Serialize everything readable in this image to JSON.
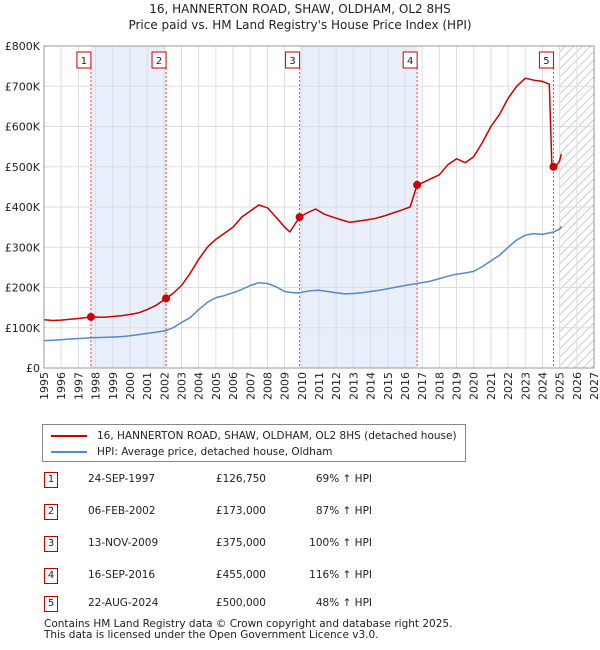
{
  "title_line1": "16, HANNERTON ROAD, SHAW, OLDHAM, OL2 8HS",
  "title_line2": "Price paid vs. HM Land Registry's House Price Index (HPI)",
  "chart_data": {
    "type": "line",
    "x_range": [
      1995,
      2027
    ],
    "y_range": [
      0,
      800000
    ],
    "y_ticks": [
      {
        "value": 0,
        "label": "£0"
      },
      {
        "value": 100000,
        "label": "£100K"
      },
      {
        "value": 200000,
        "label": "£200K"
      },
      {
        "value": 300000,
        "label": "£300K"
      },
      {
        "value": 400000,
        "label": "£400K"
      },
      {
        "value": 500000,
        "label": "£500K"
      },
      {
        "value": 600000,
        "label": "£600K"
      },
      {
        "value": 700000,
        "label": "£700K"
      },
      {
        "value": 800000,
        "label": "£800K"
      }
    ],
    "x_ticks": [
      "1995",
      "1996",
      "1997",
      "1998",
      "1999",
      "2000",
      "2001",
      "2002",
      "2003",
      "2004",
      "2005",
      "2006",
      "2007",
      "2008",
      "2009",
      "2010",
      "2011",
      "2012",
      "2013",
      "2014",
      "2015",
      "2016",
      "2017",
      "2018",
      "2019",
      "2020",
      "2021",
      "2022",
      "2023",
      "2024",
      "2025",
      "2026",
      "2027"
    ],
    "grid": true,
    "shaded_ranges": [
      [
        1997.73,
        2002.1
      ],
      [
        2009.87,
        2016.71
      ]
    ],
    "future_hatch_from": 2025.0,
    "series": [
      {
        "name": "16, HANNERTON ROAD, SHAW, OLDHAM, OL2 8HS (detached house)",
        "color": "#cc0000",
        "points": [
          [
            1995.0,
            120000
          ],
          [
            1995.5,
            118000
          ],
          [
            1996.0,
            119000
          ],
          [
            1996.5,
            121000
          ],
          [
            1997.0,
            123000
          ],
          [
            1997.73,
            126750
          ],
          [
            1998.5,
            126000
          ],
          [
            1999.0,
            128000
          ],
          [
            1999.5,
            130000
          ],
          [
            2000.0,
            133000
          ],
          [
            2000.5,
            137000
          ],
          [
            2001.0,
            145000
          ],
          [
            2001.5,
            155000
          ],
          [
            2002.1,
            173000
          ],
          [
            2002.5,
            185000
          ],
          [
            2003.0,
            205000
          ],
          [
            2003.5,
            235000
          ],
          [
            2004.0,
            270000
          ],
          [
            2004.5,
            300000
          ],
          [
            2005.0,
            320000
          ],
          [
            2005.5,
            335000
          ],
          [
            2006.0,
            350000
          ],
          [
            2006.5,
            375000
          ],
          [
            2007.0,
            390000
          ],
          [
            2007.5,
            405000
          ],
          [
            2008.0,
            398000
          ],
          [
            2008.5,
            375000
          ],
          [
            2009.0,
            350000
          ],
          [
            2009.3,
            338000
          ],
          [
            2009.87,
            375000
          ],
          [
            2010.3,
            385000
          ],
          [
            2010.8,
            395000
          ],
          [
            2011.3,
            382000
          ],
          [
            2011.8,
            375000
          ],
          [
            2012.3,
            368000
          ],
          [
            2012.8,
            362000
          ],
          [
            2013.3,
            365000
          ],
          [
            2013.8,
            368000
          ],
          [
            2014.3,
            372000
          ],
          [
            2014.8,
            378000
          ],
          [
            2015.3,
            385000
          ],
          [
            2015.8,
            392000
          ],
          [
            2016.3,
            400000
          ],
          [
            2016.71,
            455000
          ],
          [
            2017.0,
            460000
          ],
          [
            2017.5,
            470000
          ],
          [
            2018.0,
            480000
          ],
          [
            2018.5,
            505000
          ],
          [
            2019.0,
            520000
          ],
          [
            2019.5,
            510000
          ],
          [
            2020.0,
            525000
          ],
          [
            2020.5,
            560000
          ],
          [
            2021.0,
            600000
          ],
          [
            2021.5,
            630000
          ],
          [
            2022.0,
            670000
          ],
          [
            2022.5,
            700000
          ],
          [
            2023.0,
            720000
          ],
          [
            2023.5,
            715000
          ],
          [
            2024.0,
            712000
          ],
          [
            2024.4,
            705000
          ],
          [
            2024.55,
            500000
          ],
          [
            2024.75,
            498000
          ],
          [
            2025.0,
            515000
          ],
          [
            2025.1,
            532000
          ]
        ]
      },
      {
        "name": "HPI: Average price, detached house, Oldham",
        "color": "#5588cc",
        "points": [
          [
            1995.0,
            68000
          ],
          [
            1995.5,
            69000
          ],
          [
            1996.0,
            70000
          ],
          [
            1996.5,
            72000
          ],
          [
            1997.0,
            73000
          ],
          [
            1997.73,
            75000
          ],
          [
            1998.5,
            76000
          ],
          [
            1999.0,
            77000
          ],
          [
            1999.5,
            78000
          ],
          [
            2000.0,
            80000
          ],
          [
            2000.5,
            83000
          ],
          [
            2001.0,
            86000
          ],
          [
            2001.5,
            89000
          ],
          [
            2002.1,
            93000
          ],
          [
            2002.5,
            100000
          ],
          [
            2003.0,
            113000
          ],
          [
            2003.5,
            125000
          ],
          [
            2004.0,
            145000
          ],
          [
            2004.5,
            163000
          ],
          [
            2005.0,
            175000
          ],
          [
            2005.5,
            180000
          ],
          [
            2006.0,
            187000
          ],
          [
            2006.5,
            195000
          ],
          [
            2007.0,
            205000
          ],
          [
            2007.5,
            212000
          ],
          [
            2008.0,
            210000
          ],
          [
            2008.5,
            202000
          ],
          [
            2009.0,
            190000
          ],
          [
            2009.5,
            187000
          ],
          [
            2009.87,
            187000
          ],
          [
            2010.5,
            192000
          ],
          [
            2011.0,
            193000
          ],
          [
            2011.5,
            190000
          ],
          [
            2012.0,
            187000
          ],
          [
            2012.5,
            184000
          ],
          [
            2013.0,
            185000
          ],
          [
            2013.5,
            187000
          ],
          [
            2014.0,
            190000
          ],
          [
            2014.5,
            193000
          ],
          [
            2015.0,
            197000
          ],
          [
            2015.5,
            201000
          ],
          [
            2016.0,
            205000
          ],
          [
            2016.71,
            210000
          ],
          [
            2017.5,
            216000
          ],
          [
            2018.0,
            222000
          ],
          [
            2018.5,
            228000
          ],
          [
            2019.0,
            233000
          ],
          [
            2019.5,
            236000
          ],
          [
            2020.0,
            240000
          ],
          [
            2020.5,
            252000
          ],
          [
            2021.0,
            266000
          ],
          [
            2021.5,
            280000
          ],
          [
            2022.0,
            300000
          ],
          [
            2022.5,
            318000
          ],
          [
            2023.0,
            330000
          ],
          [
            2023.5,
            334000
          ],
          [
            2024.0,
            332000
          ],
          [
            2024.65,
            338000
          ],
          [
            2025.0,
            345000
          ],
          [
            2025.1,
            352000
          ]
        ]
      }
    ],
    "sales_markers": [
      {
        "label": "1",
        "x": 1997.73,
        "y": 126750
      },
      {
        "label": "2",
        "x": 2002.1,
        "y": 173000
      },
      {
        "label": "3",
        "x": 2009.87,
        "y": 375000
      },
      {
        "label": "4",
        "x": 2016.71,
        "y": 455000
      },
      {
        "label": "5",
        "x": 2024.64,
        "y": 500000
      }
    ]
  },
  "legend": {
    "property_label": "16, HANNERTON ROAD, SHAW, OLDHAM, OL2 8HS (detached house)",
    "hpi_label": "HPI: Average price, detached house, Oldham",
    "property_color": "#cc0000",
    "hpi_color": "#5588cc"
  },
  "sales": [
    {
      "num": "1",
      "date": "24-SEP-1997",
      "price": "£126,750",
      "hpi": "69% ↑ HPI"
    },
    {
      "num": "2",
      "date": "06-FEB-2002",
      "price": "£173,000",
      "hpi": "87% ↑ HPI"
    },
    {
      "num": "3",
      "date": "13-NOV-2009",
      "price": "£375,000",
      "hpi": "100% ↑ HPI"
    },
    {
      "num": "4",
      "date": "16-SEP-2016",
      "price": "£455,000",
      "hpi": "116% ↑ HPI"
    },
    {
      "num": "5",
      "date": "22-AUG-2024",
      "price": "£500,000",
      "hpi": "48% ↑ HPI"
    }
  ],
  "footer_line1": "Contains HM Land Registry data © Crown copyright and database right 2025.",
  "footer_line2": "This data is licensed under the Open Government Licence v3.0."
}
